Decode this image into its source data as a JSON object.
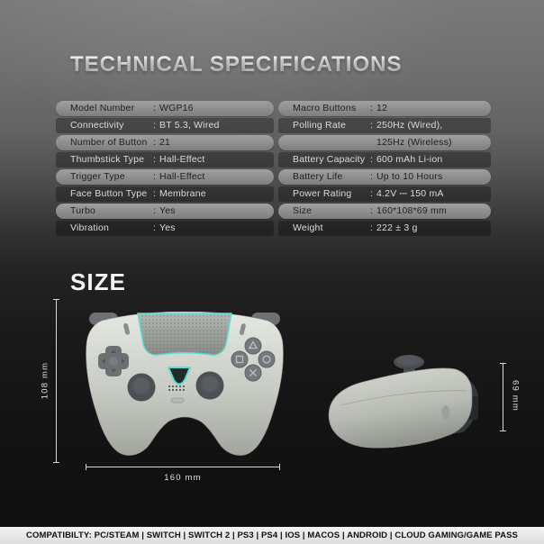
{
  "title": "TECHNICAL SPECIFICATIONS",
  "size_heading": "SIZE",
  "colors": {
    "accent_teal": "#56dfd5",
    "pill_light": "#8f8f8f",
    "background_top": "#787878",
    "background_bottom": "#0e0e0e",
    "footer_background": "#ececec"
  },
  "spec_table": {
    "left_column": [
      {
        "label": "Model Number",
        "sep": ":",
        "value": "WGP16",
        "style": "light"
      },
      {
        "label": "Connectivity",
        "sep": ":",
        "value": "BT 5.3, Wired",
        "style": "dark"
      },
      {
        "label": "Number of  Button",
        "sep": ":",
        "value": "21",
        "style": "light"
      },
      {
        "label": "Thumbstick Type",
        "sep": ":",
        "value": "Hall-Effect",
        "style": "dark"
      },
      {
        "label": "Trigger Type",
        "sep": ":",
        "value": "Hall-Effect",
        "style": "light"
      },
      {
        "label": "Face Button Type",
        "sep": ":",
        "value": "Membrane",
        "style": "dark"
      },
      {
        "label": "Turbo",
        "sep": ":",
        "value": "Yes",
        "style": "light"
      },
      {
        "label": "Vibration",
        "sep": ":",
        "value": "Yes",
        "style": "dark"
      }
    ],
    "right_column": [
      {
        "label": "Macro Buttons",
        "sep": ":",
        "value": "12",
        "style": "light"
      },
      {
        "label": "Polling Rate",
        "sep": ":",
        "value": "250Hz (Wired),",
        "style": "dark"
      },
      {
        "label": "",
        "sep": "",
        "value": "125Hz (Wireless)",
        "style": "light"
      },
      {
        "label": "Battery Capacity",
        "sep": ":",
        "value": "600 mAh Li-ion",
        "style": "dark"
      },
      {
        "label": "Battery Life",
        "sep": ":",
        "value": "Up to 10 Hours",
        "style": "light"
      },
      {
        "label": "Power Rating",
        "sep": ":",
        "value": "4.2V ⎓ 150 mA",
        "style": "dark"
      },
      {
        "label": "Size",
        "sep": ":",
        "value": "160*108*69 mm",
        "style": "light"
      },
      {
        "label": "Weight",
        "sep": ":",
        "value": "222 ± 3 g",
        "style": "dark"
      }
    ]
  },
  "dimensions": {
    "height_label": "108 mm",
    "width_label": "160 mm",
    "depth_label": "69 mm"
  },
  "footer": {
    "text": "COMPATIBILTY: PC/STEAM | SWITCH | SWITCH 2 | PS3 | PS4 | IOS | MACOS | ANDROID | CLOUD GAMING/GAME PASS"
  }
}
